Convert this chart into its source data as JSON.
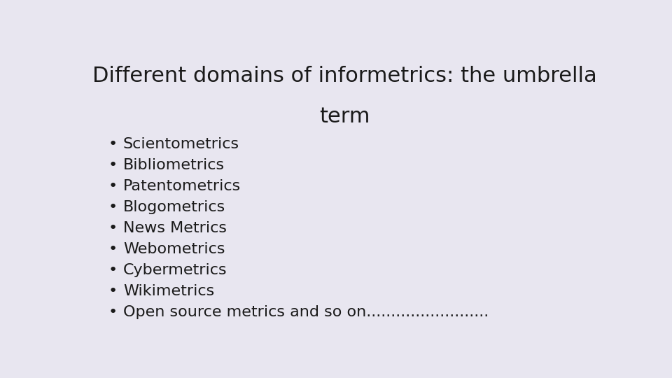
{
  "title_line1": "Different domains of informetrics: the umbrella",
  "title_line2": "term",
  "background_color": "#e8e6f0",
  "title_color": "#1a1a1a",
  "text_color": "#1a1a1a",
  "title_fontsize": 22,
  "bullet_fontsize": 16,
  "bullet_items": [
    "Scientometrics",
    "Bibliometrics",
    "Patentometrics",
    "Blogometrics",
    "News Metrics",
    "Webometrics",
    "Cybermetrics",
    "Wikimetrics",
    "Open source metrics and so on........................."
  ],
  "font_family": "DejaVu Sans"
}
